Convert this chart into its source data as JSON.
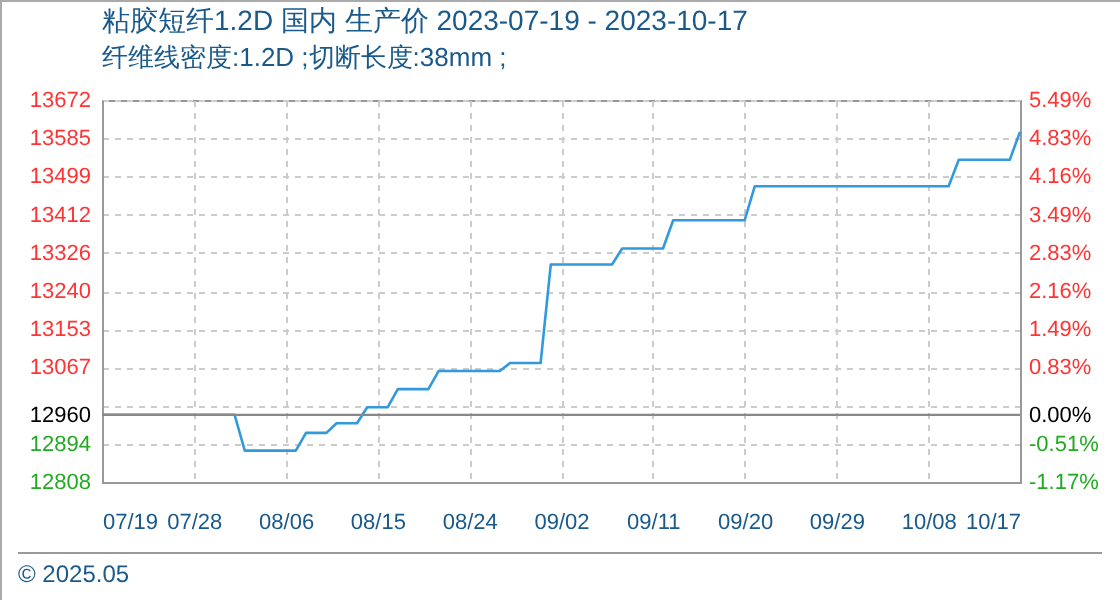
{
  "chart_data": {
    "type": "line",
    "title": "粘胶短纤1.2D 国内 生产价 2023-07-19 - 2023-10-17",
    "subtitle": "纤维线密度:1.2D ;切断长度:38mm ;",
    "x": [
      "2023-07-19",
      "2023-08-01",
      "2023-08-02",
      "2023-08-07",
      "2023-08-08",
      "2023-08-10",
      "2023-08-11",
      "2023-08-13",
      "2023-08-14",
      "2023-08-16",
      "2023-08-17",
      "2023-08-20",
      "2023-08-21",
      "2023-08-27",
      "2023-08-28",
      "2023-08-31",
      "2023-09-01",
      "2023-09-07",
      "2023-09-08",
      "2023-09-12",
      "2023-09-13",
      "2023-09-20",
      "2023-09-21",
      "2023-10-10",
      "2023-10-11",
      "2023-10-16",
      "2023-10-17"
    ],
    "series": [
      {
        "color": "#3399dd",
        "values": [
          12960,
          12960,
          12879,
          12879,
          12919,
          12919,
          12941,
          12941,
          12977,
          12977,
          13018,
          13018,
          13059,
          13059,
          13077,
          13077,
          13300,
          13300,
          13336,
          13336,
          13400,
          13400,
          13477,
          13477,
          13537,
          13537,
          13600
        ]
      }
    ],
    "xlim": [
      "2023-07-19",
      "2023-10-17"
    ],
    "xticks": [
      {
        "value": "2023-07-19",
        "label": "07/19"
      },
      {
        "value": "2023-07-28",
        "label": "07/28"
      },
      {
        "value": "2023-08-06",
        "label": "08/06"
      },
      {
        "value": "2023-08-15",
        "label": "08/15"
      },
      {
        "value": "2023-08-24",
        "label": "08/24"
      },
      {
        "value": "2023-09-02",
        "label": "09/02"
      },
      {
        "value": "2023-09-11",
        "label": "09/11"
      },
      {
        "value": "2023-09-20",
        "label": "09/20"
      },
      {
        "value": "2023-09-29",
        "label": "09/29"
      },
      {
        "value": "2023-10-08",
        "label": "10/08"
      },
      {
        "value": "2023-10-17",
        "label": "10/17"
      }
    ],
    "ylim": [
      12808,
      13672
    ],
    "yticks": [
      12808,
      12894,
      12960,
      {
        "value": 12981,
        "label": null
      },
      13067,
      13153,
      13240,
      13326,
      13412,
      13499,
      13585,
      13672
    ],
    "y2lim": [
      -1.17,
      5.49
    ],
    "y2ticks": [
      {
        "value": -1.17,
        "label": "-1.17%"
      },
      {
        "value": -0.51,
        "label": "-0.51%"
      },
      {
        "value": 0,
        "label": "0.00%"
      },
      {
        "value": 0.83,
        "label": "0.83%"
      },
      {
        "value": 1.49,
        "label": "1.49%"
      },
      {
        "value": 2.16,
        "label": "2.16%"
      },
      {
        "value": 2.83,
        "label": "2.83%"
      },
      {
        "value": 3.49,
        "label": "3.49%"
      },
      {
        "value": 4.16,
        "label": "4.16%"
      },
      {
        "value": 4.83,
        "label": "4.83%"
      },
      {
        "value": 5.49,
        "label": "5.49%"
      }
    ],
    "ref_lines": [
      {
        "axis": "y2",
        "value": 0,
        "color": "#888888"
      }
    ],
    "grid": true,
    "marker": "none",
    "line_style": "solid",
    "annotations": [
      "© 2025.05"
    ]
  }
}
